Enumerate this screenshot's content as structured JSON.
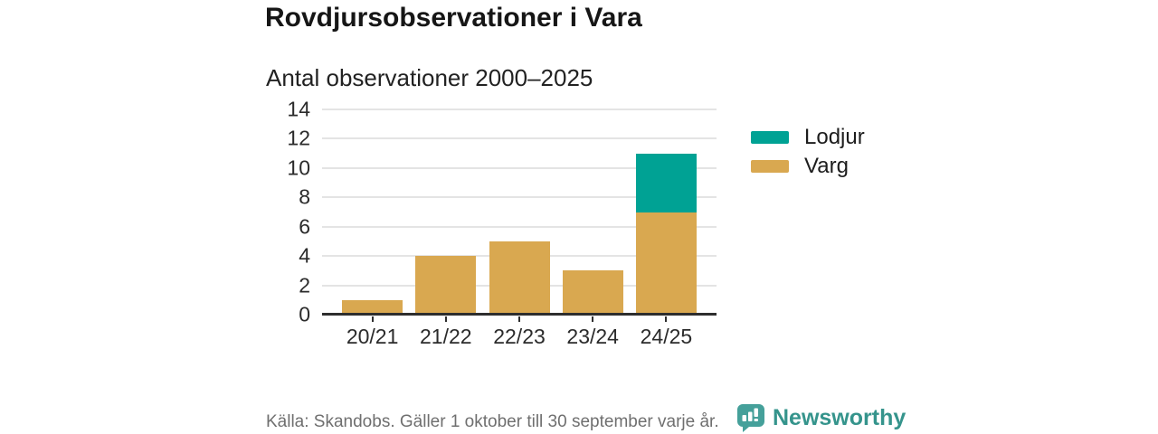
{
  "header": {
    "title": "Rovdjursobservationer i Vara",
    "subtitle": "Antal observationer 2000–2025"
  },
  "footer": {
    "source": "Källa: Skandobs. Gäller 1 oktober till 30 september varje år.",
    "brand": "Newsworthy"
  },
  "colors": {
    "lodjur": "#00a294",
    "varg": "#d9a850",
    "gridline": "#e4e4e4",
    "axis": "#2e2e2e",
    "brand_text": "#35948c",
    "logo_fill": "#45a09a"
  },
  "icons": {
    "logo": "newsworthy-logo-icon"
  },
  "chart_data": {
    "type": "bar",
    "stacked": true,
    "title": "Rovdjursobservationer i Vara",
    "subtitle": "Antal observationer 2000–2025",
    "categories": [
      "20/21",
      "21/22",
      "22/23",
      "23/24",
      "24/25"
    ],
    "series": [
      {
        "name": "Lodjur",
        "color": "#00a294",
        "values": [
          0,
          0,
          0,
          0,
          4
        ]
      },
      {
        "name": "Varg",
        "color": "#d9a850",
        "values": [
          1,
          4,
          5,
          3,
          7
        ]
      }
    ],
    "stack_order_bottom_to_top": [
      "Varg",
      "Lodjur"
    ],
    "yticks": [
      0,
      2,
      4,
      6,
      8,
      10,
      12,
      14
    ],
    "ylim": [
      0,
      14
    ],
    "xlabel": "",
    "ylabel": "",
    "grid": true,
    "legend_position": "right",
    "totals": [
      1,
      4,
      5,
      3,
      11
    ]
  }
}
